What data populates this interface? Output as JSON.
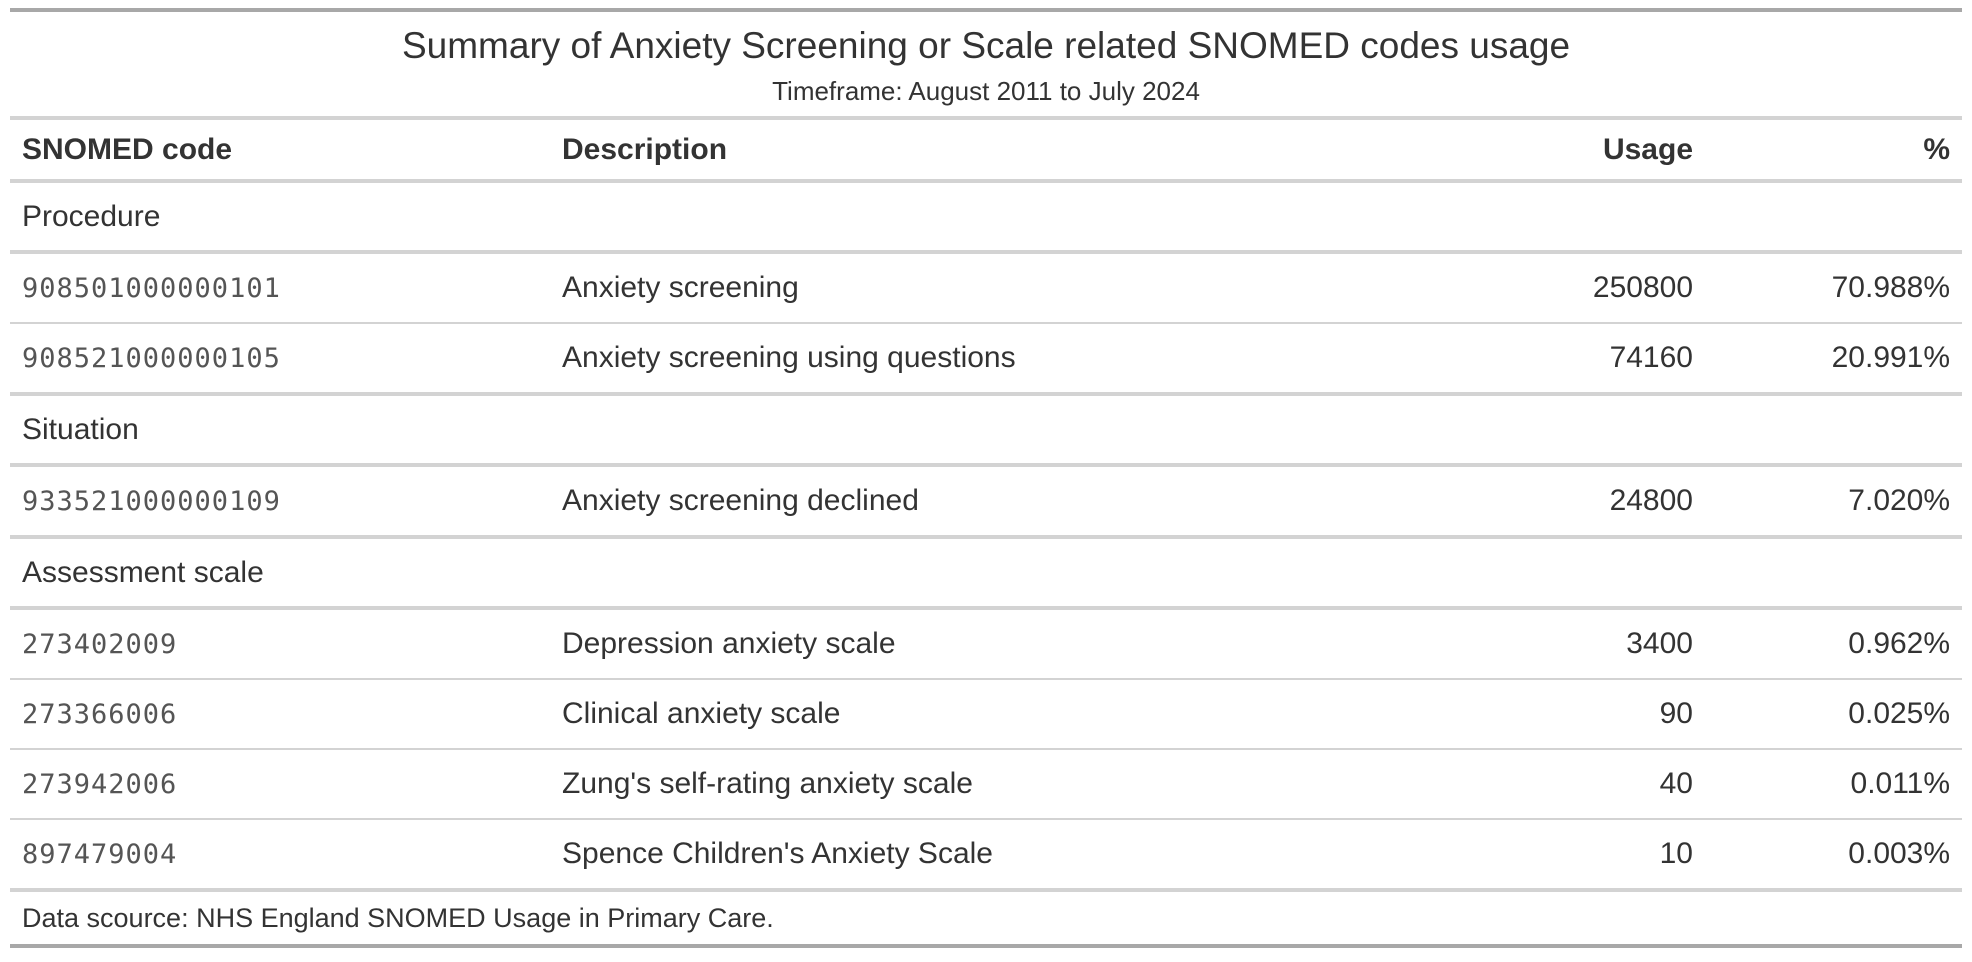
{
  "title": "Summary of Anxiety Screening or Scale related SNOMED codes usage",
  "subtitle": "Timeframe: August 2011 to July 2024",
  "columns": {
    "code": "SNOMED code",
    "description": "Description",
    "usage": "Usage",
    "percent": "%"
  },
  "groups": [
    {
      "name": "Procedure",
      "rows": [
        {
          "code": "908501000000101",
          "description": "Anxiety screening",
          "usage": "250800",
          "percent": "70.988%"
        },
        {
          "code": "908521000000105",
          "description": "Anxiety screening using questions",
          "usage": "74160",
          "percent": "20.991%"
        }
      ]
    },
    {
      "name": "Situation",
      "rows": [
        {
          "code": "933521000000109",
          "description": "Anxiety screening declined",
          "usage": "24800",
          "percent": "7.020%"
        }
      ]
    },
    {
      "name": "Assessment scale",
      "rows": [
        {
          "code": "273402009",
          "description": "Depression anxiety scale",
          "usage": "3400",
          "percent": "0.962%"
        },
        {
          "code": "273366006",
          "description": "Clinical anxiety scale",
          "usage": "90",
          "percent": "0.025%"
        },
        {
          "code": "273942006",
          "description": "Zung's self-rating anxiety scale",
          "usage": "40",
          "percent": "0.011%"
        },
        {
          "code": "897479004",
          "description": "Spence Children's Anxiety Scale",
          "usage": "10",
          "percent": "0.003%"
        }
      ]
    }
  ],
  "footer": "Data scource: NHS England SNOMED Usage in Primary Care."
}
